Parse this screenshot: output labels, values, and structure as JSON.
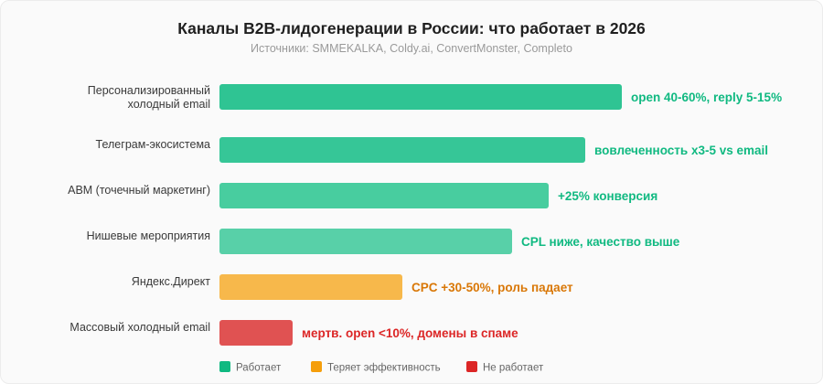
{
  "chart_data": {
    "type": "bar",
    "orientation": "horizontal",
    "title": "Каналы B2B-лидогенерации в России: что работает в 2026",
    "subtitle": "Источники: SMMEKALKA, Coldy.ai, ConvertMonster, Completo",
    "categories": [
      [
        "Персонализированный",
        "холодный email"
      ],
      [
        "Телеграм-экосистема"
      ],
      [
        "ABM (точечный маркетинг)"
      ],
      [
        "Нишевые мероприятия"
      ],
      [
        "Яндекс.Директ"
      ],
      [
        "Массовый холодный email"
      ]
    ],
    "values": [
      11,
      10,
      9,
      8,
      5,
      2
    ],
    "statuses": [
      "works",
      "works",
      "works",
      "works",
      "losing",
      "fails"
    ],
    "bar_colors": [
      "#2fc493",
      "#36c697",
      "#48cd9f",
      "#58d0a8",
      "#f7b84b",
      "#e05252"
    ],
    "data_labels": [
      "open 40-60%, reply 5-15%",
      "вовлеченность x3-5 vs email",
      "+25% конверсия",
      "CPL ниже, качество выше",
      "CPC +30-50%, роль падает",
      "мертв. open <10%, домены в спаме"
    ],
    "axis_visible": false,
    "grid": false,
    "legend_position": "bottom",
    "legend": [
      {
        "key": "works",
        "label": "Работает",
        "color": "#10b981"
      },
      {
        "key": "losing",
        "label": "Теряет эффективность",
        "color": "#f59e0b"
      },
      {
        "key": "fails",
        "label": "Не работает",
        "color": "#dc2626"
      }
    ]
  }
}
